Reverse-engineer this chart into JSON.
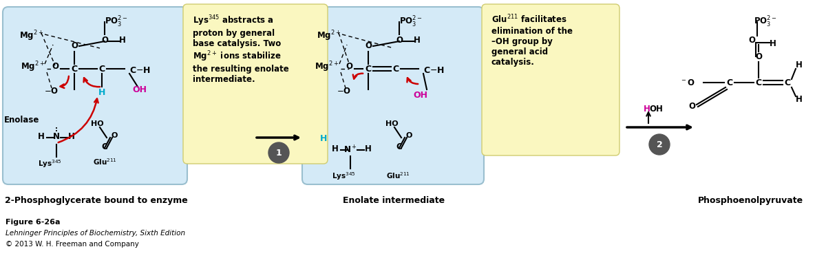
{
  "background_color": "#ffffff",
  "fig_width": 12.0,
  "fig_height": 3.91,
  "dpi": 100,
  "caption_line1": "Figure 6-26a",
  "caption_line2": "Lehninger Principles of Biochemistry, Sixth Edition",
  "caption_line3": "© 2013 W. H. Freeman and Company",
  "box1_color": "#d4eaf7",
  "box2_color": "#d4eaf7",
  "note1_color": "#faf7c0",
  "note2_color": "#faf7c0",
  "note1_text": "Lys$^{345}$ abstracts a\nproton by general\nbase catalysis. Two\nMg$^{2+}$ ions stabilize\nthe resulting enolate\nintermediate.",
  "note2_text": "Glu$^{211}$ facilitates\nelimination of the\n–OH group by\ngeneral acid\ncatalysis.",
  "label1": "2-Phosphoglycerate bound to enzyme",
  "label2": "Enolate intermediate",
  "label3": "Phosphoenolpyruvate",
  "red_color": "#cc0000",
  "cyan_color": "#00aacc",
  "magenta_color": "#cc0099",
  "circle_color": "#555555"
}
